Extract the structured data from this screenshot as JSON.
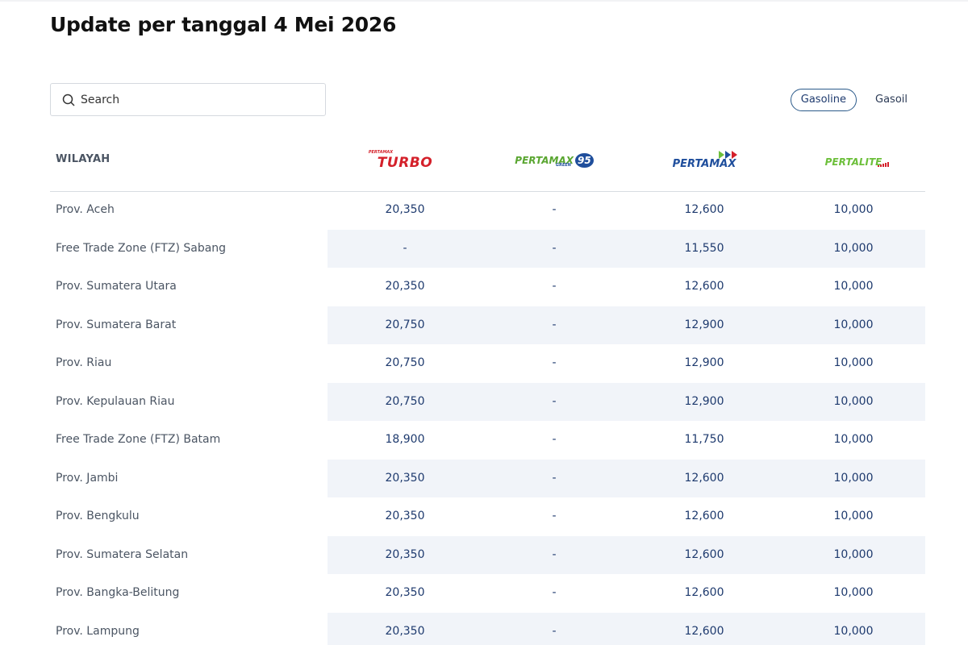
{
  "header": {
    "title": "Update per tanggal 4 Mei 2026"
  },
  "search": {
    "placeholder": "Search"
  },
  "tabs": [
    {
      "label": "Gasoline",
      "active": true
    },
    {
      "label": "Gasoil",
      "active": false
    }
  ],
  "table": {
    "region_header": "WILAYAH",
    "products": [
      {
        "small": "PERTAMAX",
        "main": "TURBO"
      },
      {
        "main": "PERTAMAX",
        "small": "GREEN",
        "badge": "95"
      },
      {
        "main": "PERTAMAX"
      },
      {
        "main": "PERTALITE"
      }
    ],
    "rows": [
      [
        "Prov. Aceh",
        "20,350",
        "-",
        "12,600",
        "10,000"
      ],
      [
        "Free Trade Zone (FTZ) Sabang",
        "-",
        "-",
        "11,550",
        "10,000"
      ],
      [
        "Prov. Sumatera Utara",
        "20,350",
        "-",
        "12,600",
        "10,000"
      ],
      [
        "Prov. Sumatera Barat",
        "20,750",
        "-",
        "12,900",
        "10,000"
      ],
      [
        "Prov. Riau",
        "20,750",
        "-",
        "12,900",
        "10,000"
      ],
      [
        "Prov. Kepulauan Riau",
        "20,750",
        "-",
        "12,900",
        "10,000"
      ],
      [
        "Free Trade Zone (FTZ) Batam",
        "18,900",
        "-",
        "11,750",
        "10,000"
      ],
      [
        "Prov. Jambi",
        "20,350",
        "-",
        "12,600",
        "10,000"
      ],
      [
        "Prov. Bengkulu",
        "20,350",
        "-",
        "12,600",
        "10,000"
      ],
      [
        "Prov. Sumatera Selatan",
        "20,350",
        "-",
        "12,600",
        "10,000"
      ],
      [
        "Prov. Bangka-Belitung",
        "20,350",
        "-",
        "12,600",
        "10,000"
      ],
      [
        "Prov. Lampung",
        "20,350",
        "-",
        "12,600",
        "10,000"
      ]
    ]
  }
}
